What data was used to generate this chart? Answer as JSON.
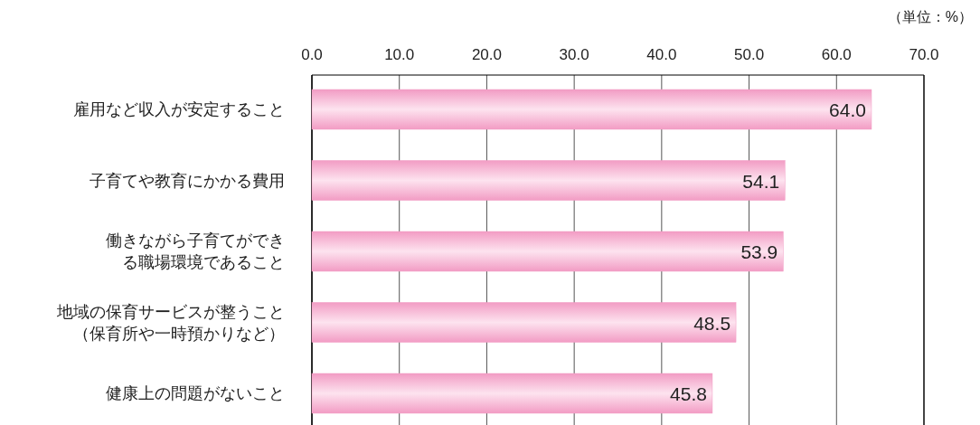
{
  "chart_data": {
    "type": "bar",
    "orientation": "horizontal",
    "categories": [
      "雇用など収入が安定すること",
      "子育てや教育にかかる費用",
      "働きながら子育てができる職場環境であること",
      "地域の保育サービスが整うこと（保育所や一時預かりなど）",
      "健康上の問題がないこと"
    ],
    "values": [
      64.0,
      54.1,
      53.9,
      48.5,
      45.8
    ],
    "value_labels": [
      "64.0",
      "54.1",
      "53.9",
      "48.5",
      "45.8"
    ],
    "color": "#f29cc4",
    "xlim": [
      0,
      70
    ],
    "xticks": [
      {
        "value": 0,
        "label": "0.0"
      },
      {
        "value": 10,
        "label": "10.0"
      },
      {
        "value": 20,
        "label": "20.0"
      },
      {
        "value": 30,
        "label": "30.0"
      },
      {
        "value": 40,
        "label": "40.0"
      },
      {
        "value": 50,
        "label": "50.0"
      },
      {
        "value": 60,
        "label": "60.0"
      },
      {
        "value": 70,
        "label": "70.0"
      }
    ],
    "grid": "x",
    "annotations": [
      "（単位：%）"
    ]
  }
}
